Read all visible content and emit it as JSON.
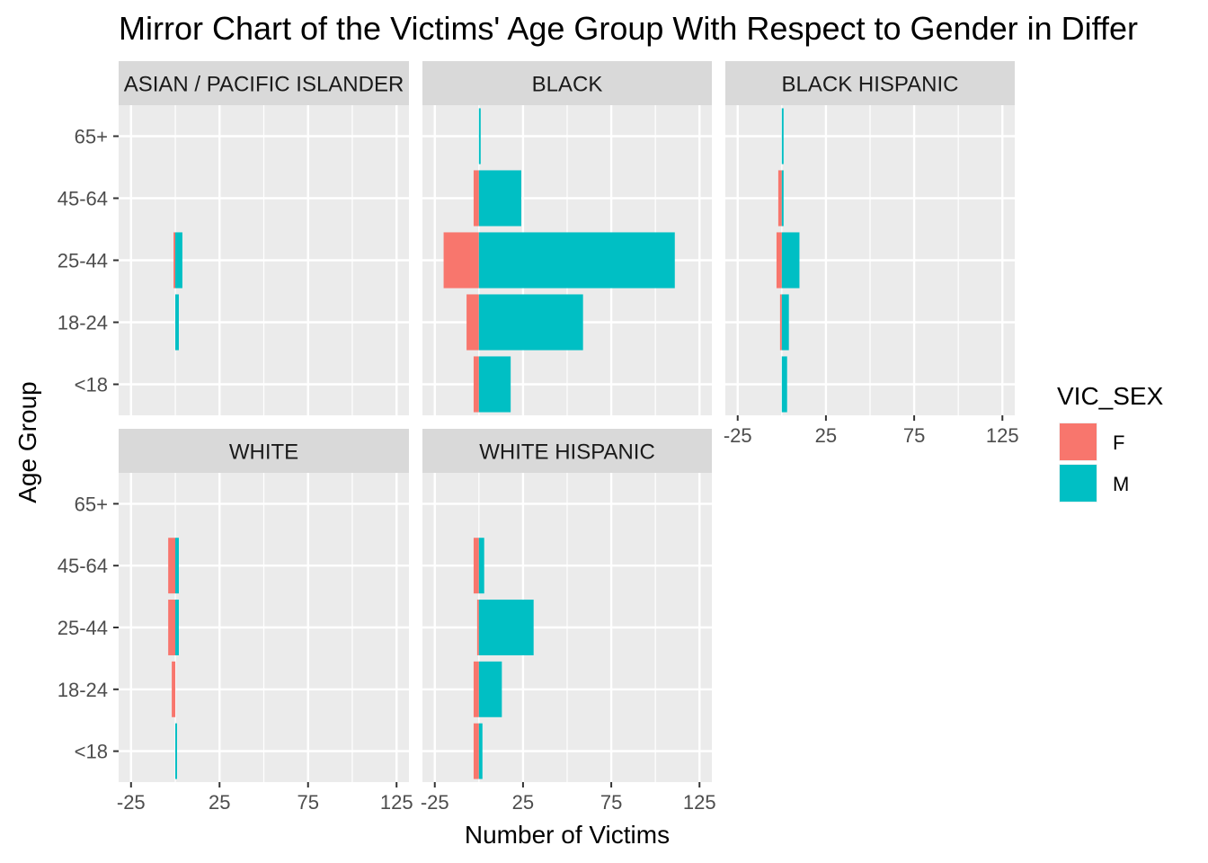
{
  "chart_data": {
    "type": "bar",
    "title": "Mirror Chart of the Victims' Age Group With Respect to Gender in Differ",
    "xlabel": "Number of Victims",
    "ylabel": "Age Group",
    "xlim": [
      -32,
      132
    ],
    "x_ticks": [
      -25,
      25,
      75,
      125
    ],
    "x_tick_labels": [
      "-25",
      "25",
      "75",
      "125"
    ],
    "categories": [
      "<18",
      "18-24",
      "25-44",
      "45-64",
      "65+"
    ],
    "grid": true,
    "legend": {
      "title": "VIC_SEX",
      "position": "right",
      "entries": [
        {
          "label": "F",
          "color": "#F8766D"
        },
        {
          "label": "M",
          "color": "#00BFC4"
        }
      ]
    },
    "panels": [
      {
        "name": "ASIAN / PACIFIC ISLANDER",
        "series": [
          {
            "name": "F",
            "values": [
              0,
              0,
              -1,
              0,
              0
            ]
          },
          {
            "name": "M",
            "values": [
              0,
              2,
              4,
              0,
              0
            ]
          }
        ]
      },
      {
        "name": "BLACK",
        "series": [
          {
            "name": "F",
            "values": [
              -3,
              -7,
              -20,
              -3,
              0
            ]
          },
          {
            "name": "M",
            "values": [
              18,
              59,
              111,
              24,
              1
            ]
          }
        ]
      },
      {
        "name": "BLACK HISPANIC",
        "series": [
          {
            "name": "F",
            "values": [
              0,
              -1,
              -3,
              -2,
              0
            ]
          },
          {
            "name": "M",
            "values": [
              3,
              4,
              10,
              1,
              1
            ]
          }
        ]
      },
      {
        "name": "WHITE",
        "series": [
          {
            "name": "F",
            "values": [
              0,
              -2,
              -4,
              -4,
              0
            ]
          },
          {
            "name": "M",
            "values": [
              1,
              0,
              2,
              2,
              0
            ]
          }
        ]
      },
      {
        "name": "WHITE HISPANIC",
        "series": [
          {
            "name": "F",
            "values": [
              -3,
              -3,
              -1,
              -3,
              0
            ]
          },
          {
            "name": "M",
            "values": [
              2,
              13,
              31,
              3,
              0
            ]
          }
        ]
      }
    ]
  }
}
